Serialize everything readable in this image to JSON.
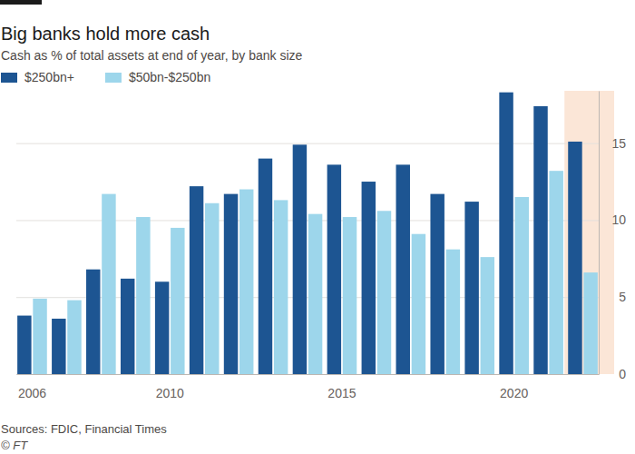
{
  "chart_data": {
    "type": "bar",
    "title": "Big banks hold more cash",
    "subtitle": "Cash as % of total assets at end of year, by bank size",
    "source": "Sources: FDIC, Financial Times",
    "credit": "© FT",
    "categories": [
      "2006",
      null,
      null,
      null,
      "2010",
      null,
      null,
      null,
      null,
      "2015",
      null,
      null,
      null,
      null,
      "2020",
      null,
      null
    ],
    "series": [
      {
        "name": "$250bn+",
        "color": "#1d5592",
        "values": [
          3.8,
          3.6,
          6.8,
          6.2,
          6.0,
          12.2,
          11.7,
          14.0,
          14.9,
          13.6,
          12.5,
          13.6,
          11.7,
          11.2,
          18.3,
          17.4,
          15.1
        ]
      },
      {
        "name": "$50bn-$250bn",
        "color": "#9dd6eb",
        "values": [
          4.9,
          4.8,
          11.7,
          10.2,
          9.5,
          11.1,
          12.0,
          11.3,
          10.4,
          10.2,
          10.6,
          9.1,
          8.1,
          7.6,
          11.5,
          13.2,
          6.6
        ]
      }
    ],
    "ylim": [
      0,
      18.4
    ],
    "yticks": [
      0,
      5,
      10,
      15
    ],
    "grid": true,
    "legend": "top-left"
  }
}
